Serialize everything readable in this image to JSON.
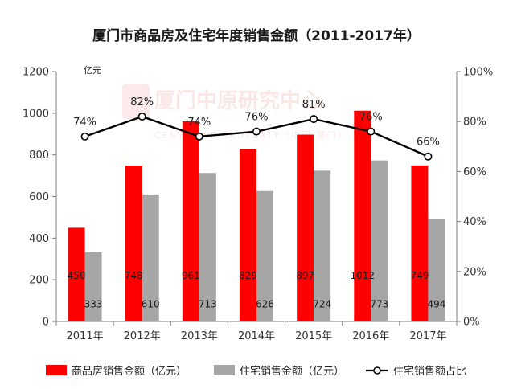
{
  "chart_data": {
    "type": "bar",
    "title": "厦门市商品房及住宅年度销售金额（2011-2017年）",
    "y_unit": "亿元",
    "categories": [
      "2011年",
      "2012年",
      "2013年",
      "2014年",
      "2015年",
      "2016年",
      "2017年"
    ],
    "series": [
      {
        "name": "商品房销售金额（亿元）",
        "type": "bar",
        "color": "#ff0000",
        "axis": "left",
        "values": [
          450,
          748,
          961,
          829,
          897,
          1012,
          749
        ]
      },
      {
        "name": "住宅销售金额（亿元）",
        "type": "bar",
        "color": "#a6a6a6",
        "axis": "left",
        "values": [
          333,
          610,
          713,
          626,
          724,
          773,
          494
        ]
      },
      {
        "name": "住宅销售额占比",
        "type": "line",
        "color": "#000000",
        "axis": "right",
        "values": [
          74,
          82,
          74,
          76,
          81,
          76,
          66
        ],
        "labels": [
          "74%",
          "82%",
          "74%",
          "76%",
          "81%",
          "76%",
          "66%"
        ]
      }
    ],
    "y_left": {
      "min": 0,
      "max": 1200,
      "ticks": [
        "0",
        "200",
        "400",
        "600",
        "800",
        "1000",
        "1200"
      ]
    },
    "y_right": {
      "min": 0,
      "max": 100,
      "ticks": [
        "0%",
        "20%",
        "40%",
        "60%",
        "80%",
        "100%"
      ]
    },
    "legend_position": "bottom",
    "grid": false
  },
  "watermark": {
    "main": "厦门中原研究中心",
    "sub": "CENTALINE PROPERTY（中国·厦门）"
  }
}
